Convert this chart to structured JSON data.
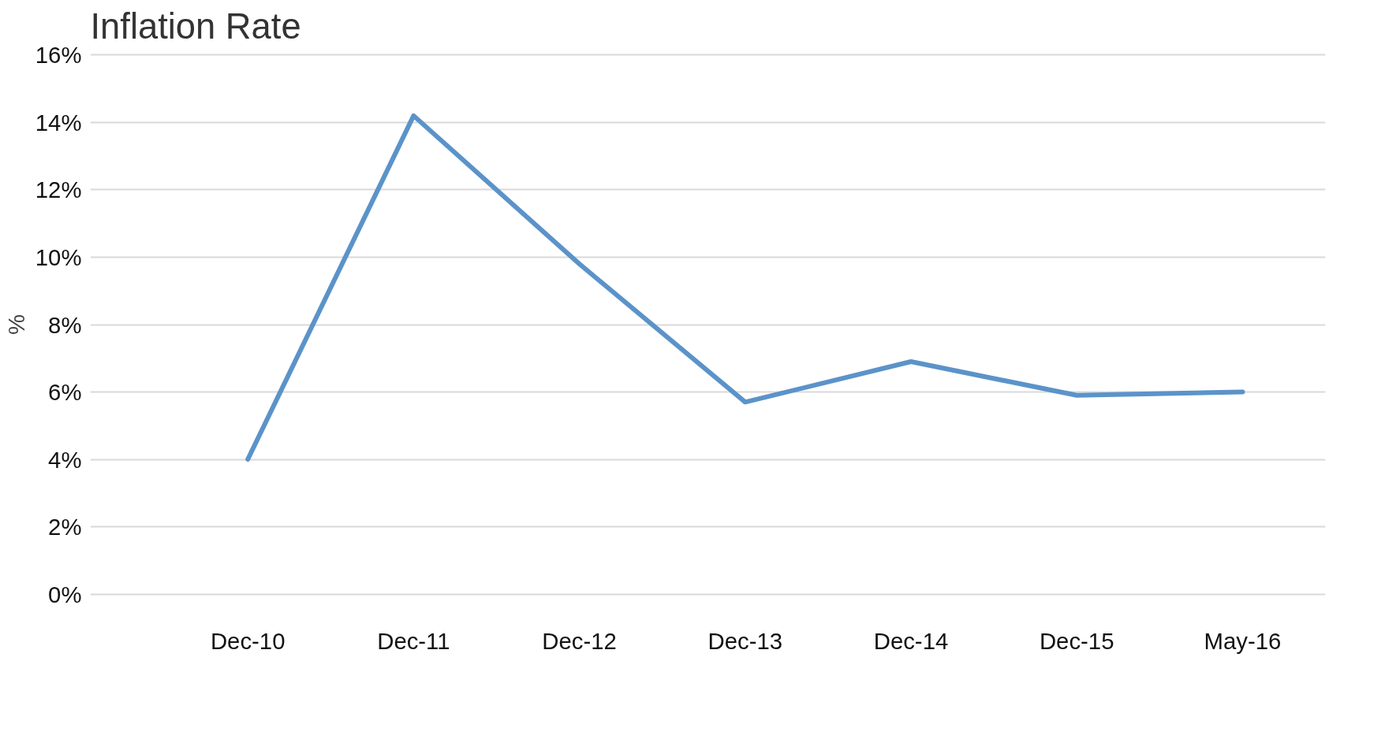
{
  "chart_data": {
    "type": "line",
    "title": "Inflation Rate",
    "ylabel": "%",
    "categories": [
      "Dec-10",
      "Dec-11",
      "Dec-12",
      "Dec-13",
      "Dec-14",
      "Dec-15",
      "May-16"
    ],
    "series": [
      {
        "color": "#5b93c9",
        "values": [
          4.0,
          14.2,
          9.8,
          5.7,
          6.9,
          5.9,
          6.0
        ]
      }
    ],
    "ylim": [
      0,
      16
    ],
    "yticks": [
      {
        "value": 0,
        "label": "0%"
      },
      {
        "value": 2,
        "label": "2%"
      },
      {
        "value": 4,
        "label": "4%"
      },
      {
        "value": 6,
        "label": "6%"
      },
      {
        "value": 8,
        "label": "8%"
      },
      {
        "value": 10,
        "label": "10%"
      },
      {
        "value": 12,
        "label": "12%"
      },
      {
        "value": 14,
        "label": "14%"
      },
      {
        "value": 16,
        "label": "16%"
      }
    ],
    "grid": "y",
    "marker": "none",
    "line_style": "solid"
  }
}
